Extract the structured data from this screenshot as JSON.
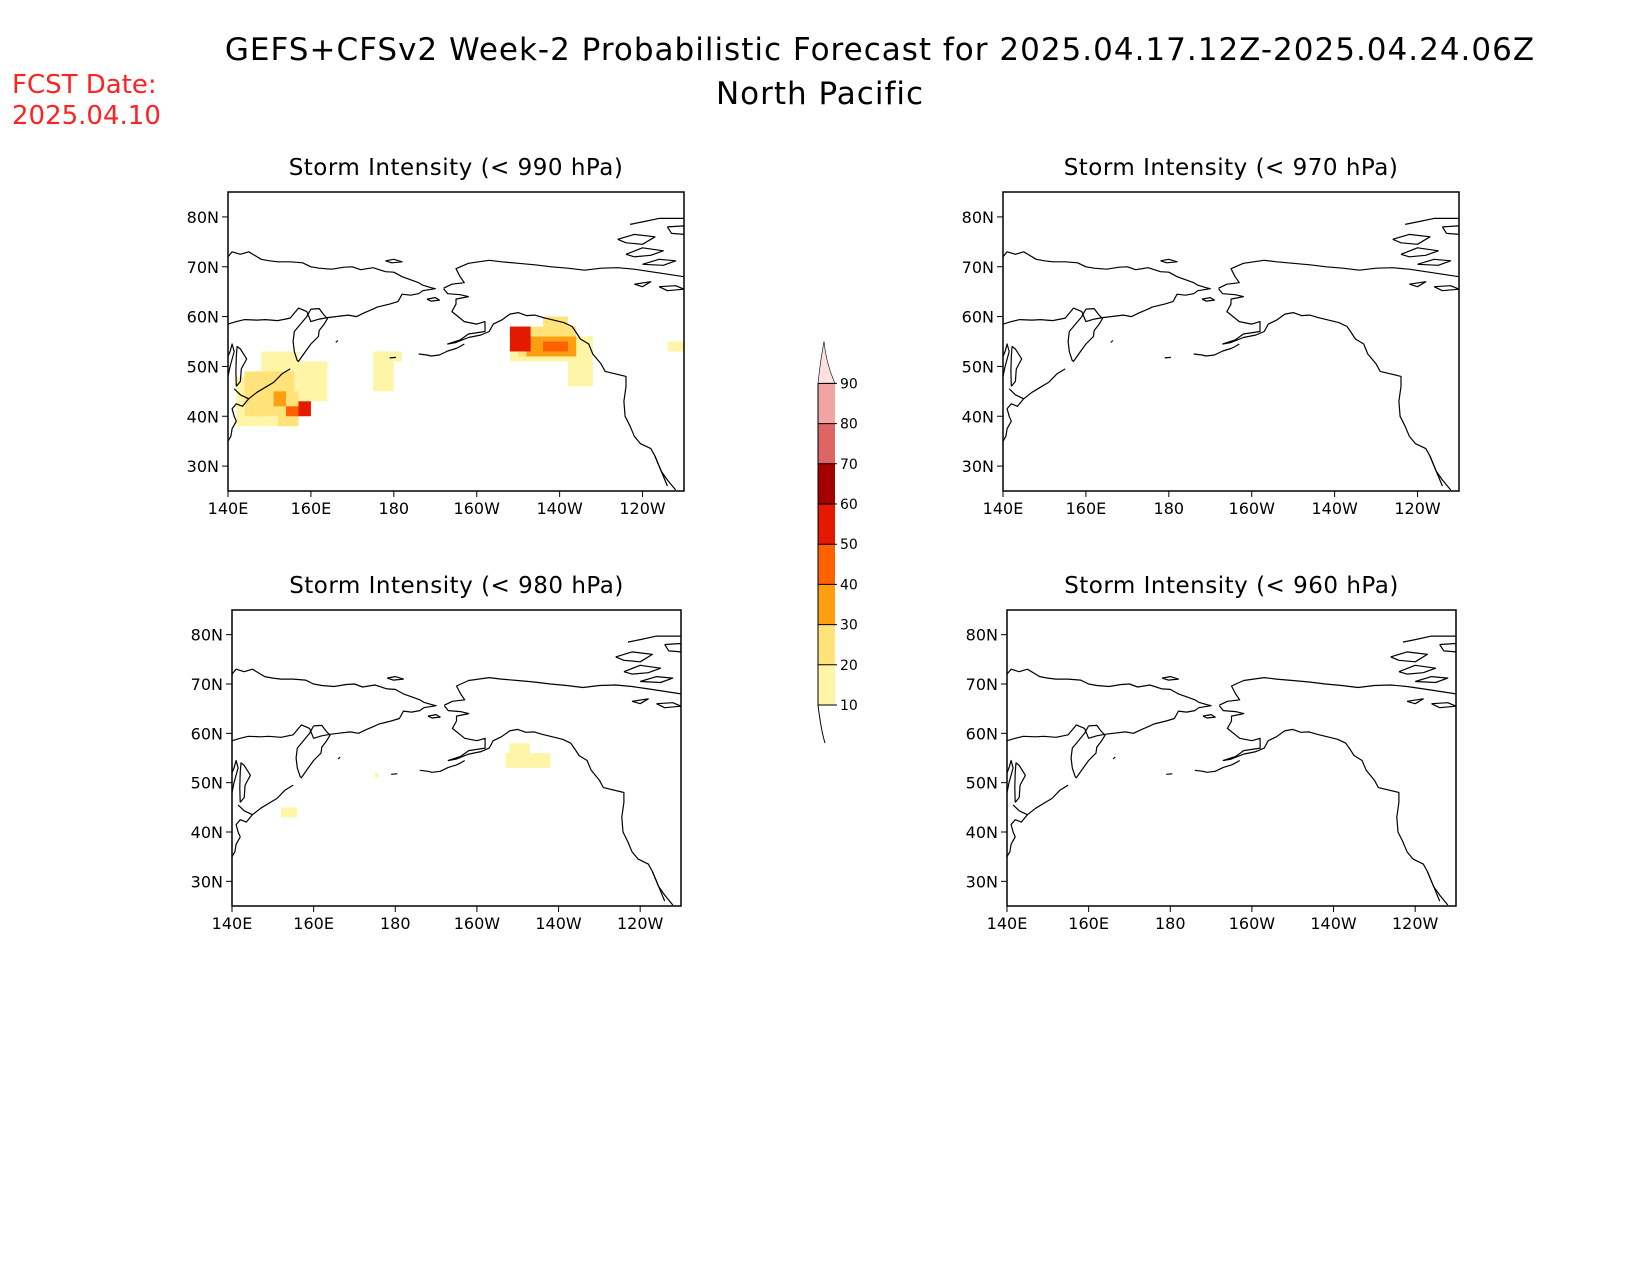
{
  "header": {
    "title_line1": "GEFS+CFSv2 Week-2 Probabilistic Forecast for 2025.04.17.12Z-2025.04.24.06Z",
    "title_line2": "North Pacific",
    "fcst_label": "FCST Date:",
    "fcst_date": "2025.04.10"
  },
  "chart_data": {
    "type": "heatmap",
    "lon_range": [
      140,
      250
    ],
    "lat_range": [
      25,
      85
    ],
    "x_ticks": [
      {
        "lon": 140,
        "label": "140E"
      },
      {
        "lon": 160,
        "label": "160E"
      },
      {
        "lon": 180,
        "label": "180"
      },
      {
        "lon": 200,
        "label": "160W"
      },
      {
        "lon": 220,
        "label": "140W"
      },
      {
        "lon": 240,
        "label": "120W"
      }
    ],
    "y_ticks": [
      {
        "lat": 30,
        "label": "30N"
      },
      {
        "lat": 40,
        "label": "40N"
      },
      {
        "lat": 50,
        "label": "50N"
      },
      {
        "lat": 60,
        "label": "60N"
      },
      {
        "lat": 70,
        "label": "70N"
      },
      {
        "lat": 80,
        "label": "80N"
      }
    ],
    "colorbar": {
      "levels": [
        10,
        20,
        30,
        40,
        50,
        60,
        70,
        80,
        90
      ],
      "colors": [
        "#fff5a8",
        "#ffe27a",
        "#ff9e10",
        "#ff6000",
        "#e41a00",
        "#a50000",
        "#df6565",
        "#f2a3a3",
        "#ffe0e0"
      ]
    },
    "panels": [
      {
        "id": "lt990",
        "title": "Storm Intensity (< 990 hPa)",
        "cells": [
          {
            "lon": [
              142,
              148
            ],
            "lat": [
              38,
              48
            ],
            "prob": 10
          },
          {
            "lon": [
              148,
              157
            ],
            "lat": [
              38,
              53
            ],
            "prob": 10
          },
          {
            "lon": [
              157,
              164
            ],
            "lat": [
              43,
              51
            ],
            "prob": 10
          },
          {
            "lon": [
              144,
              156
            ],
            "lat": [
              40,
              49
            ],
            "prob": 20
          },
          {
            "lon": [
              152,
              157
            ],
            "lat": [
              38,
              45
            ],
            "prob": 20
          },
          {
            "lon": [
              151,
              154
            ],
            "lat": [
              42,
              45
            ],
            "prob": 30
          },
          {
            "lon": [
              154,
              157
            ],
            "lat": [
              40,
              42
            ],
            "prob": 40
          },
          {
            "lon": [
              157,
              160
            ],
            "lat": [
              40,
              43
            ],
            "prob": 50
          },
          {
            "lon": [
              175,
              180
            ],
            "lat": [
              45,
              53
            ],
            "prob": 10
          },
          {
            "lon": [
              180,
              182
            ],
            "lat": [
              51,
              53
            ],
            "prob": 10
          },
          {
            "lon": [
              208,
              225
            ],
            "lat": [
              51,
              56
            ],
            "prob": 10
          },
          {
            "lon": [
              222,
              228
            ],
            "lat": [
              46,
              56
            ],
            "prob": 10
          },
          {
            "lon": [
              210,
              224
            ],
            "lat": [
              52,
              58
            ],
            "prob": 20
          },
          {
            "lon": [
              216,
              222
            ],
            "lat": [
              56,
              60
            ],
            "prob": 20
          },
          {
            "lon": [
              212,
              224
            ],
            "lat": [
              52,
              56
            ],
            "prob": 30
          },
          {
            "lon": [
              216,
              222
            ],
            "lat": [
              53,
              55
            ],
            "prob": 40
          },
          {
            "lon": [
              208,
              213
            ],
            "lat": [
              53,
              58
            ],
            "prob": 50
          },
          {
            "lon": [
              246,
              250
            ],
            "lat": [
              53,
              55
            ],
            "prob": 10
          }
        ]
      },
      {
        "id": "lt970",
        "title": "Storm Intensity (< 970 hPa)",
        "cells": []
      },
      {
        "id": "lt980",
        "title": "Storm Intensity (< 980 hPa)",
        "cells": [
          {
            "lon": [
              152,
              156
            ],
            "lat": [
              43,
              45
            ],
            "prob": 10
          },
          {
            "lon": [
              175,
              176
            ],
            "lat": [
              51,
              52
            ],
            "prob": 10
          },
          {
            "lon": [
              207,
              218
            ],
            "lat": [
              53,
              56
            ],
            "prob": 10
          },
          {
            "lon": [
              208,
              213
            ],
            "lat": [
              56,
              58
            ],
            "prob": 10
          }
        ]
      },
      {
        "id": "lt960",
        "title": "Storm Intensity (< 960 hPa)",
        "cells": []
      }
    ]
  }
}
